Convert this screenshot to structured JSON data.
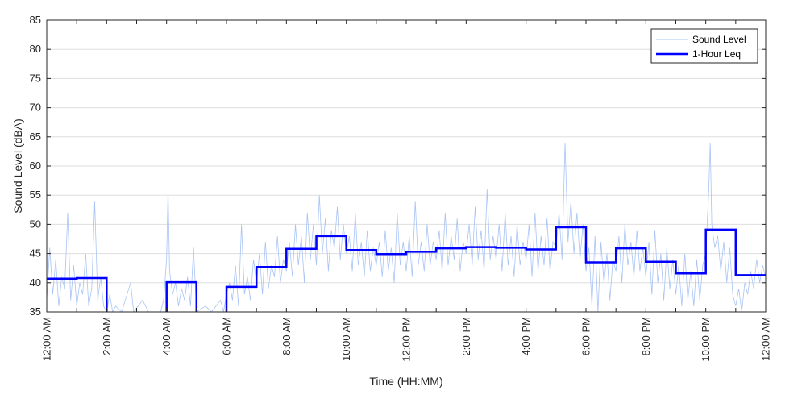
{
  "chart_data": {
    "type": "line",
    "xlabel": "Time (HH:MM)",
    "ylabel": "Sound Level (dBA)",
    "xlim": [
      0,
      24
    ],
    "ylim": [
      35,
      85
    ],
    "grid": true,
    "legend_position": "top-right",
    "y_ticks": [
      35,
      40,
      45,
      50,
      55,
      60,
      65,
      70,
      75,
      80,
      85
    ],
    "x_ticks": [
      {
        "hour": 0,
        "label": "12:00 AM"
      },
      {
        "hour": 2,
        "label": "2:00 AM"
      },
      {
        "hour": 4,
        "label": "4:00 AM"
      },
      {
        "hour": 6,
        "label": "6:00 AM"
      },
      {
        "hour": 8,
        "label": "8:00 AM"
      },
      {
        "hour": 10,
        "label": "10:00 AM"
      },
      {
        "hour": 12,
        "label": "12:00 PM"
      },
      {
        "hour": 14,
        "label": "2:00 PM"
      },
      {
        "hour": 16,
        "label": "4:00 PM"
      },
      {
        "hour": 18,
        "label": "6:00 PM"
      },
      {
        "hour": 20,
        "label": "8:00 PM"
      },
      {
        "hour": 22,
        "label": "10:00 PM"
      },
      {
        "hour": 24,
        "label": "12:00 AM"
      }
    ],
    "series": [
      {
        "name": "Sound Level",
        "color": "#a9c4f5",
        "points": [
          [
            0.0,
            37
          ],
          [
            0.1,
            46
          ],
          [
            0.2,
            38
          ],
          [
            0.3,
            44
          ],
          [
            0.4,
            36
          ],
          [
            0.5,
            41
          ],
          [
            0.6,
            39
          ],
          [
            0.7,
            52
          ],
          [
            0.8,
            37
          ],
          [
            0.9,
            43
          ],
          [
            1.0,
            36
          ],
          [
            1.1,
            40
          ],
          [
            1.2,
            38
          ],
          [
            1.3,
            45
          ],
          [
            1.4,
            36
          ],
          [
            1.5,
            39
          ],
          [
            1.6,
            54
          ],
          [
            1.7,
            37
          ],
          [
            1.8,
            41
          ],
          [
            1.9,
            36
          ],
          [
            2.0,
            35
          ],
          [
            2.1,
            38
          ],
          [
            2.2,
            35
          ],
          [
            2.3,
            36
          ],
          [
            2.5,
            35
          ],
          [
            2.8,
            40
          ],
          [
            2.9,
            35
          ],
          [
            3.2,
            37
          ],
          [
            3.4,
            35
          ],
          [
            3.8,
            35
          ],
          [
            3.9,
            37
          ],
          [
            4.0,
            44
          ],
          [
            4.05,
            56
          ],
          [
            4.1,
            42
          ],
          [
            4.2,
            38
          ],
          [
            4.3,
            40
          ],
          [
            4.4,
            36
          ],
          [
            4.5,
            39
          ],
          [
            4.6,
            37
          ],
          [
            4.7,
            41
          ],
          [
            4.8,
            36
          ],
          [
            4.9,
            46
          ],
          [
            5.0,
            35
          ],
          [
            5.3,
            36
          ],
          [
            5.5,
            35
          ],
          [
            5.8,
            37
          ],
          [
            5.9,
            35
          ],
          [
            6.0,
            38
          ],
          [
            6.1,
            40
          ],
          [
            6.2,
            37
          ],
          [
            6.3,
            43
          ],
          [
            6.4,
            36
          ],
          [
            6.5,
            50
          ],
          [
            6.6,
            38
          ],
          [
            6.7,
            41
          ],
          [
            6.8,
            37
          ],
          [
            6.9,
            44
          ],
          [
            7.0,
            40
          ],
          [
            7.1,
            45
          ],
          [
            7.2,
            38
          ],
          [
            7.3,
            47
          ],
          [
            7.4,
            39
          ],
          [
            7.5,
            43
          ],
          [
            7.6,
            41
          ],
          [
            7.7,
            48
          ],
          [
            7.8,
            40
          ],
          [
            7.9,
            44
          ],
          [
            8.0,
            42
          ],
          [
            8.1,
            47
          ],
          [
            8.2,
            41
          ],
          [
            8.3,
            50
          ],
          [
            8.4,
            43
          ],
          [
            8.5,
            48
          ],
          [
            8.6,
            40
          ],
          [
            8.7,
            52
          ],
          [
            8.8,
            44
          ],
          [
            8.9,
            50
          ],
          [
            9.0,
            43
          ],
          [
            9.1,
            55
          ],
          [
            9.2,
            45
          ],
          [
            9.3,
            51
          ],
          [
            9.4,
            42
          ],
          [
            9.5,
            49
          ],
          [
            9.6,
            46
          ],
          [
            9.7,
            53
          ],
          [
            9.8,
            44
          ],
          [
            9.9,
            50
          ],
          [
            10.0,
            45
          ],
          [
            10.1,
            48
          ],
          [
            10.2,
            42
          ],
          [
            10.3,
            52
          ],
          [
            10.4,
            43
          ],
          [
            10.5,
            47
          ],
          [
            10.6,
            41
          ],
          [
            10.7,
            49
          ],
          [
            10.8,
            42
          ],
          [
            10.9,
            46
          ],
          [
            11.0,
            43
          ],
          [
            11.1,
            47
          ],
          [
            11.2,
            41
          ],
          [
            11.3,
            49
          ],
          [
            11.4,
            42
          ],
          [
            11.5,
            46
          ],
          [
            11.6,
            40
          ],
          [
            11.7,
            52
          ],
          [
            11.8,
            43
          ],
          [
            11.9,
            47
          ],
          [
            12.0,
            42
          ],
          [
            12.1,
            48
          ],
          [
            12.2,
            41
          ],
          [
            12.3,
            54
          ],
          [
            12.4,
            43
          ],
          [
            12.5,
            47
          ],
          [
            12.6,
            42
          ],
          [
            12.7,
            50
          ],
          [
            12.8,
            43
          ],
          [
            12.9,
            47
          ],
          [
            13.0,
            44
          ],
          [
            13.1,
            49
          ],
          [
            13.2,
            42
          ],
          [
            13.3,
            52
          ],
          [
            13.4,
            43
          ],
          [
            13.5,
            48
          ],
          [
            13.6,
            44
          ],
          [
            13.7,
            51
          ],
          [
            13.8,
            42
          ],
          [
            13.9,
            47
          ],
          [
            14.0,
            45
          ],
          [
            14.1,
            50
          ],
          [
            14.2,
            43
          ],
          [
            14.3,
            53
          ],
          [
            14.4,
            44
          ],
          [
            14.5,
            49
          ],
          [
            14.6,
            42
          ],
          [
            14.7,
            56
          ],
          [
            14.8,
            44
          ],
          [
            14.9,
            48
          ],
          [
            15.0,
            44
          ],
          [
            15.1,
            50
          ],
          [
            15.2,
            42
          ],
          [
            15.3,
            52
          ],
          [
            15.4,
            43
          ],
          [
            15.5,
            48
          ],
          [
            15.6,
            41
          ],
          [
            15.7,
            50
          ],
          [
            15.8,
            43
          ],
          [
            15.9,
            47
          ],
          [
            16.0,
            44
          ],
          [
            16.1,
            50
          ],
          [
            16.2,
            41
          ],
          [
            16.3,
            52
          ],
          [
            16.4,
            42
          ],
          [
            16.5,
            48
          ],
          [
            16.6,
            43
          ],
          [
            16.7,
            51
          ],
          [
            16.8,
            42
          ],
          [
            16.9,
            47
          ],
          [
            17.0,
            46
          ],
          [
            17.1,
            52
          ],
          [
            17.2,
            44
          ],
          [
            17.3,
            64
          ],
          [
            17.4,
            47
          ],
          [
            17.5,
            54
          ],
          [
            17.6,
            45
          ],
          [
            17.7,
            52
          ],
          [
            17.8,
            44
          ],
          [
            17.9,
            50
          ],
          [
            18.0,
            42
          ],
          [
            18.1,
            46
          ],
          [
            18.2,
            36
          ],
          [
            18.3,
            48
          ],
          [
            18.4,
            35
          ],
          [
            18.5,
            47
          ],
          [
            18.6,
            40
          ],
          [
            18.7,
            45
          ],
          [
            18.8,
            37
          ],
          [
            18.9,
            44
          ],
          [
            19.0,
            42
          ],
          [
            19.1,
            48
          ],
          [
            19.2,
            40
          ],
          [
            19.3,
            50
          ],
          [
            19.4,
            43
          ],
          [
            19.5,
            47
          ],
          [
            19.6,
            41
          ],
          [
            19.7,
            49
          ],
          [
            19.8,
            42
          ],
          [
            19.9,
            46
          ],
          [
            20.0,
            41
          ],
          [
            20.1,
            47
          ],
          [
            20.2,
            38
          ],
          [
            20.3,
            49
          ],
          [
            20.4,
            40
          ],
          [
            20.5,
            45
          ],
          [
            20.6,
            37
          ],
          [
            20.7,
            46
          ],
          [
            20.8,
            39
          ],
          [
            20.9,
            44
          ],
          [
            21.0,
            38
          ],
          [
            21.1,
            43
          ],
          [
            21.2,
            36
          ],
          [
            21.3,
            45
          ],
          [
            21.4,
            37
          ],
          [
            21.5,
            42
          ],
          [
            21.6,
            36
          ],
          [
            21.7,
            44
          ],
          [
            21.8,
            37
          ],
          [
            21.9,
            43
          ],
          [
            22.0,
            45
          ],
          [
            22.1,
            56
          ],
          [
            22.15,
            64
          ],
          [
            22.2,
            50
          ],
          [
            22.3,
            46
          ],
          [
            22.4,
            48
          ],
          [
            22.5,
            42
          ],
          [
            22.6,
            47
          ],
          [
            22.7,
            40
          ],
          [
            22.8,
            46
          ],
          [
            22.9,
            38
          ],
          [
            23.0,
            36
          ],
          [
            23.1,
            39
          ],
          [
            23.2,
            35
          ],
          [
            23.3,
            40
          ],
          [
            23.4,
            38
          ],
          [
            23.5,
            42
          ],
          [
            23.6,
            39
          ],
          [
            23.7,
            44
          ],
          [
            23.8,
            40
          ],
          [
            23.9,
            43
          ],
          [
            24.0,
            41
          ]
        ]
      },
      {
        "name": "1-Hour Leq",
        "color": "#0000ff",
        "steps": [
          {
            "start": 0,
            "end": 1,
            "value": 40.7
          },
          {
            "start": 1,
            "end": 2,
            "value": 40.8
          },
          {
            "start": 4,
            "end": 5,
            "value": 40.1
          },
          {
            "start": 6,
            "end": 7,
            "value": 39.3
          },
          {
            "start": 7,
            "end": 8,
            "value": 42.7
          },
          {
            "start": 8,
            "end": 9,
            "value": 45.8
          },
          {
            "start": 9,
            "end": 10,
            "value": 48.0
          },
          {
            "start": 10,
            "end": 11,
            "value": 45.6
          },
          {
            "start": 11,
            "end": 12,
            "value": 44.9
          },
          {
            "start": 12,
            "end": 13,
            "value": 45.3
          },
          {
            "start": 13,
            "end": 14,
            "value": 45.9
          },
          {
            "start": 14,
            "end": 15,
            "value": 46.1
          },
          {
            "start": 15,
            "end": 16,
            "value": 46.0
          },
          {
            "start": 16,
            "end": 17,
            "value": 45.7
          },
          {
            "start": 17,
            "end": 18,
            "value": 49.5
          },
          {
            "start": 18,
            "end": 19,
            "value": 43.5
          },
          {
            "start": 19,
            "end": 20,
            "value": 45.9
          },
          {
            "start": 20,
            "end": 21,
            "value": 43.6
          },
          {
            "start": 21,
            "end": 22,
            "value": 41.6
          },
          {
            "start": 22,
            "end": 23,
            "value": 49.1
          },
          {
            "start": 23,
            "end": 24,
            "value": 41.3
          }
        ]
      }
    ]
  }
}
